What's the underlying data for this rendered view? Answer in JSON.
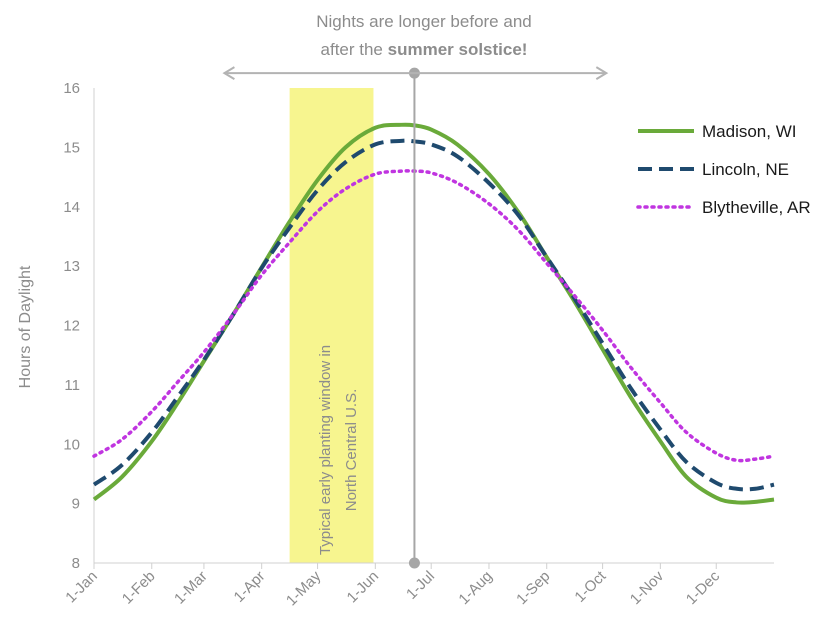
{
  "chart_data": {
    "type": "line",
    "title_line1": "Nights are longer before and",
    "title_line2_prefix": "after the ",
    "title_line2_bold": "summer solstice!",
    "ylabel": "Hours of Daylight",
    "xlabel": "",
    "ylim": [
      8,
      16
    ],
    "yticks": [
      8,
      9,
      10,
      11,
      12,
      13,
      14,
      15,
      16
    ],
    "x_range_days": [
      0,
      365
    ],
    "xticks": [
      {
        "label": "1-Jan",
        "day": 0
      },
      {
        "label": "1-Feb",
        "day": 31
      },
      {
        "label": "1-Mar",
        "day": 59
      },
      {
        "label": "1-Apr",
        "day": 90
      },
      {
        "label": "1-May",
        "day": 120
      },
      {
        "label": "1-Jun",
        "day": 151
      },
      {
        "label": "1-Jul",
        "day": 181
      },
      {
        "label": "1-Aug",
        "day": 212
      },
      {
        "label": "1-Sep",
        "day": 243
      },
      {
        "label": "1-Oct",
        "day": 273
      },
      {
        "label": "1-Nov",
        "day": 304
      },
      {
        "label": "1-Dec",
        "day": 334
      }
    ],
    "series": [
      {
        "name": "Madison, WI",
        "color": "#6aaa3a",
        "style": "solid",
        "day": [
          0,
          15,
          31,
          45,
          59,
          75,
          90,
          105,
          120,
          135,
          151,
          165,
          172,
          181,
          195,
          212,
          228,
          243,
          258,
          273,
          288,
          304,
          318,
          334,
          345,
          355,
          365
        ],
        "hours": [
          9.07,
          9.45,
          10.05,
          10.7,
          11.4,
          12.2,
          12.98,
          13.75,
          14.45,
          15.0,
          15.33,
          15.38,
          15.37,
          15.3,
          15.05,
          14.55,
          13.9,
          13.15,
          12.4,
          11.6,
          10.8,
          10.05,
          9.45,
          9.1,
          9.02,
          9.03,
          9.07
        ]
      },
      {
        "name": "Lincoln, NE",
        "color": "#1f4a6e",
        "style": "dashed",
        "day": [
          0,
          15,
          31,
          45,
          59,
          75,
          90,
          105,
          120,
          135,
          151,
          165,
          172,
          181,
          195,
          212,
          228,
          243,
          258,
          273,
          288,
          304,
          318,
          334,
          345,
          355,
          365
        ],
        "hours": [
          9.32,
          9.65,
          10.2,
          10.8,
          11.42,
          12.2,
          12.97,
          13.65,
          14.28,
          14.75,
          15.05,
          15.11,
          15.1,
          15.05,
          14.85,
          14.4,
          13.85,
          13.15,
          12.45,
          11.7,
          10.95,
          10.25,
          9.7,
          9.35,
          9.25,
          9.25,
          9.32
        ]
      },
      {
        "name": "Blytheville, AR",
        "color": "#c035e0",
        "style": "dotted",
        "day": [
          0,
          15,
          31,
          45,
          59,
          75,
          90,
          105,
          120,
          135,
          151,
          165,
          172,
          181,
          195,
          212,
          228,
          243,
          258,
          273,
          288,
          304,
          318,
          334,
          345,
          355,
          365
        ],
        "hours": [
          9.8,
          10.08,
          10.55,
          11.05,
          11.55,
          12.2,
          12.85,
          13.4,
          13.92,
          14.3,
          14.55,
          14.6,
          14.6,
          14.57,
          14.4,
          14.05,
          13.6,
          13.05,
          12.5,
          11.92,
          11.3,
          10.7,
          10.2,
          9.85,
          9.73,
          9.75,
          9.8
        ]
      }
    ],
    "band": {
      "label_line1": "Typical early planting window in",
      "label_line2": "North Central U.S.",
      "start_day": 105,
      "end_day": 150,
      "color": "#f7f58f"
    },
    "solstice": {
      "day": 172,
      "color": "#a6a6a6"
    },
    "arrow": {
      "start_day": 70,
      "end_day": 275,
      "y_hours": 16.25,
      "color": "#b3b3b3"
    },
    "legend_position": "top-right",
    "grid": false,
    "axis_color": "#d0d0d0"
  }
}
